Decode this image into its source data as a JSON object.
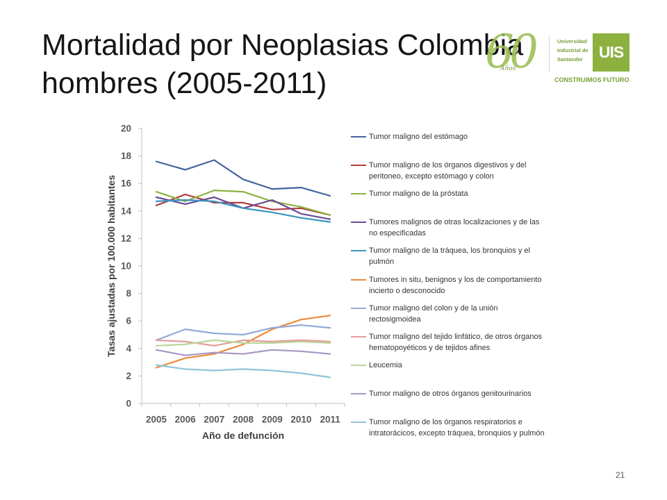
{
  "slide": {
    "title_line1": "Mortalidad por Neoplasias Colombia",
    "title_line2": "hombres (2005-2011)",
    "page_number": "21"
  },
  "logo": {
    "anniversary_number": "60",
    "anniversary_label": "Años",
    "university_lines": [
      "Universidad",
      "Industrial de",
      "Santander"
    ],
    "emblem_text": "UIS",
    "slogan": "CONSTRUIMOS FUTURO",
    "color": "#8cb13f"
  },
  "chart_data": {
    "type": "line",
    "xlabel": "Año de defunción",
    "ylabel": "Tasas ajustadas por 100.000 habitantes",
    "categories": [
      "2005",
      "2006",
      "2007",
      "2008",
      "2009",
      "2010",
      "2011"
    ],
    "ylim": [
      0,
      20
    ],
    "yticks": [
      0,
      2,
      4,
      6,
      8,
      10,
      12,
      14,
      16,
      18,
      20
    ],
    "grid": false,
    "legend_position": "right",
    "axis_color": "#bfbfbf",
    "series": [
      {
        "name": "Tumor maligno del estómago",
        "color": "#41659c",
        "values": [
          17.6,
          17.0,
          17.7,
          16.3,
          15.6,
          15.7,
          15.1
        ]
      },
      {
        "name": "Tumor maligno de los órganos digestivos y del peritoneo, excepto estómago y colon",
        "color": "#b23a3c",
        "values": [
          14.4,
          15.2,
          14.6,
          14.6,
          14.1,
          14.2,
          13.7
        ]
      },
      {
        "name": "Tumor maligno de la próstata",
        "color": "#8db143",
        "values": [
          15.4,
          14.7,
          15.5,
          15.4,
          14.7,
          14.3,
          13.7
        ]
      },
      {
        "name": "Tumores malignos de otras localizaciones y de las no especificadas",
        "color": "#6a4b95",
        "values": [
          15.0,
          14.5,
          15.0,
          14.2,
          14.8,
          13.8,
          13.4
        ]
      },
      {
        "name": "Tumor maligno de la tráquea, los bronquios y el pulmón",
        "color": "#3a93c0",
        "values": [
          14.7,
          14.8,
          14.7,
          14.2,
          13.9,
          13.5,
          13.2
        ]
      },
      {
        "name": "Tumores in situ, benignos y los de comportamiento incierto o desconocido",
        "color": "#e98a3b",
        "values": [
          2.6,
          3.3,
          3.6,
          4.3,
          5.4,
          6.1,
          6.4
        ]
      },
      {
        "name": "Tumor maligno del colon y de la unión rectosigmoidea",
        "color": "#93a9d8",
        "values": [
          4.6,
          5.4,
          5.1,
          5.0,
          5.5,
          5.7,
          5.5
        ]
      },
      {
        "name": "Tumor maligno del tejido linfático, de otros órganos hematopoyéticos y de tejidos afines",
        "color": "#e59b99",
        "values": [
          4.6,
          4.5,
          4.2,
          4.6,
          4.5,
          4.6,
          4.5
        ]
      },
      {
        "name": "Leucemia",
        "color": "#bad698",
        "values": [
          4.2,
          4.3,
          4.6,
          4.4,
          4.4,
          4.5,
          4.4
        ]
      },
      {
        "name": "Tumor maligno de otros órganos genitourinarios",
        "color": "#a796c6",
        "values": [
          3.9,
          3.5,
          3.7,
          3.6,
          3.9,
          3.8,
          3.6
        ]
      },
      {
        "name": "Tumor maligno de los órganos respiratorios e intratorácicos, excepto tráquea, bronquios y pulmón",
        "color": "#90c5dc",
        "values": [
          2.8,
          2.5,
          2.4,
          2.5,
          2.4,
          2.2,
          1.9
        ]
      }
    ]
  }
}
